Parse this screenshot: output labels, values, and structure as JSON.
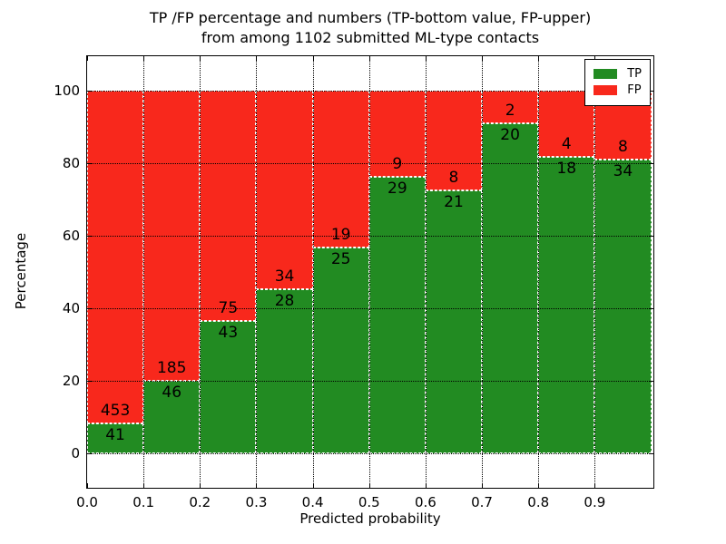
{
  "chart_data": {
    "type": "bar",
    "stacked": true,
    "stack_unit": "percent",
    "title_lines": [
      "TP /FP percentage and numbers (TP-bottom value, FP-upper)",
      "from among 1102 submitted ML-type contacts"
    ],
    "xlabel": "Predicted probability",
    "ylabel": "Percentage",
    "bins": {
      "start": 0.0,
      "width": 0.1,
      "count": 10
    },
    "categories": [
      "0.0-0.1",
      "0.1-0.2",
      "0.2-0.3",
      "0.3-0.4",
      "0.4-0.5",
      "0.5-0.6",
      "0.6-0.7",
      "0.7-0.8",
      "0.8-0.9",
      "0.9-1.0"
    ],
    "series": [
      {
        "name": "TP",
        "color": "#228b22",
        "position": "bottom",
        "values": [
          41,
          46,
          43,
          28,
          25,
          29,
          21,
          20,
          18,
          34
        ]
      },
      {
        "name": "FP",
        "color": "#f8281c",
        "position": "top",
        "values": [
          453,
          185,
          75,
          34,
          19,
          9,
          8,
          2,
          4,
          8
        ]
      }
    ],
    "tp_percent_of_bin": [
      8.3,
      19.9,
      36.4,
      45.2,
      56.8,
      76.3,
      72.4,
      90.9,
      81.8,
      81.0
    ],
    "xticks": [
      0.0,
      0.1,
      0.2,
      0.3,
      0.4,
      0.5,
      0.6,
      0.7,
      0.8,
      0.9
    ],
    "xtick_labels": [
      "0.0",
      "0.1",
      "0.2",
      "0.3",
      "0.4",
      "0.5",
      "0.6",
      "0.7",
      "0.8",
      "0.9"
    ],
    "yticks": [
      0,
      20,
      40,
      60,
      80,
      100
    ],
    "ytick_labels": [
      "0",
      "20",
      "40",
      "60",
      "80",
      "100"
    ],
    "xlim": [
      0,
      1.004
    ],
    "ylim": [
      -9.5,
      109.5
    ],
    "grid": true,
    "legend": {
      "position": "upper right",
      "entries": [
        {
          "label": "TP",
          "color": "#228b22"
        },
        {
          "label": "FP",
          "color": "#f8281c"
        }
      ]
    }
  }
}
